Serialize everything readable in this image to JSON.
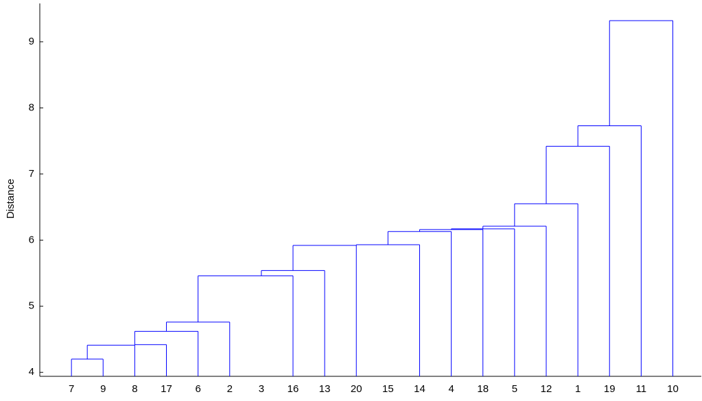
{
  "chart_data": {
    "type": "dendrogram",
    "ylabel": "Distance",
    "color": "#0000ff",
    "categories": [
      "7",
      "9",
      "8",
      "17",
      "6",
      "2",
      "3",
      "16",
      "13",
      "20",
      "15",
      "14",
      "4",
      "18",
      "5",
      "12",
      "1",
      "19",
      "11",
      "10"
    ],
    "links": [
      {
        "x": [
          0,
          1
        ],
        "height": 4.2
      },
      {
        "x": [
          0.5,
          2
        ],
        "height": 4.41
      },
      {
        "x": [
          2,
          3
        ],
        "height": 4.42
      },
      {
        "x": [
          2,
          4
        ],
        "height": 4.62
      },
      {
        "x": [
          3,
          5
        ],
        "height": 4.76
      },
      {
        "x": [
          4,
          7
        ],
        "height": 5.46
      },
      {
        "x": [
          6,
          8
        ],
        "height": 5.54
      },
      {
        "x": [
          7,
          9
        ],
        "height": 5.92
      },
      {
        "x": [
          9,
          11
        ],
        "height": 5.93
      },
      {
        "x": [
          10,
          12
        ],
        "height": 6.13
      },
      {
        "x": [
          11,
          13
        ],
        "height": 6.16
      },
      {
        "x": [
          12,
          14
        ],
        "height": 6.17
      },
      {
        "x": [
          13,
          15
        ],
        "height": 6.21
      },
      {
        "x": [
          14,
          16
        ],
        "height": 6.55
      },
      {
        "x": [
          15,
          17
        ],
        "height": 7.42
      },
      {
        "x": [
          16,
          18
        ],
        "height": 7.73
      },
      {
        "x": [
          17,
          19
        ],
        "height": 9.32
      }
    ],
    "xlim": [
      -1,
      19.9
    ],
    "ylim": [
      3.94,
      9.58
    ],
    "yticks": [
      4,
      5,
      6,
      7,
      8,
      9
    ]
  }
}
